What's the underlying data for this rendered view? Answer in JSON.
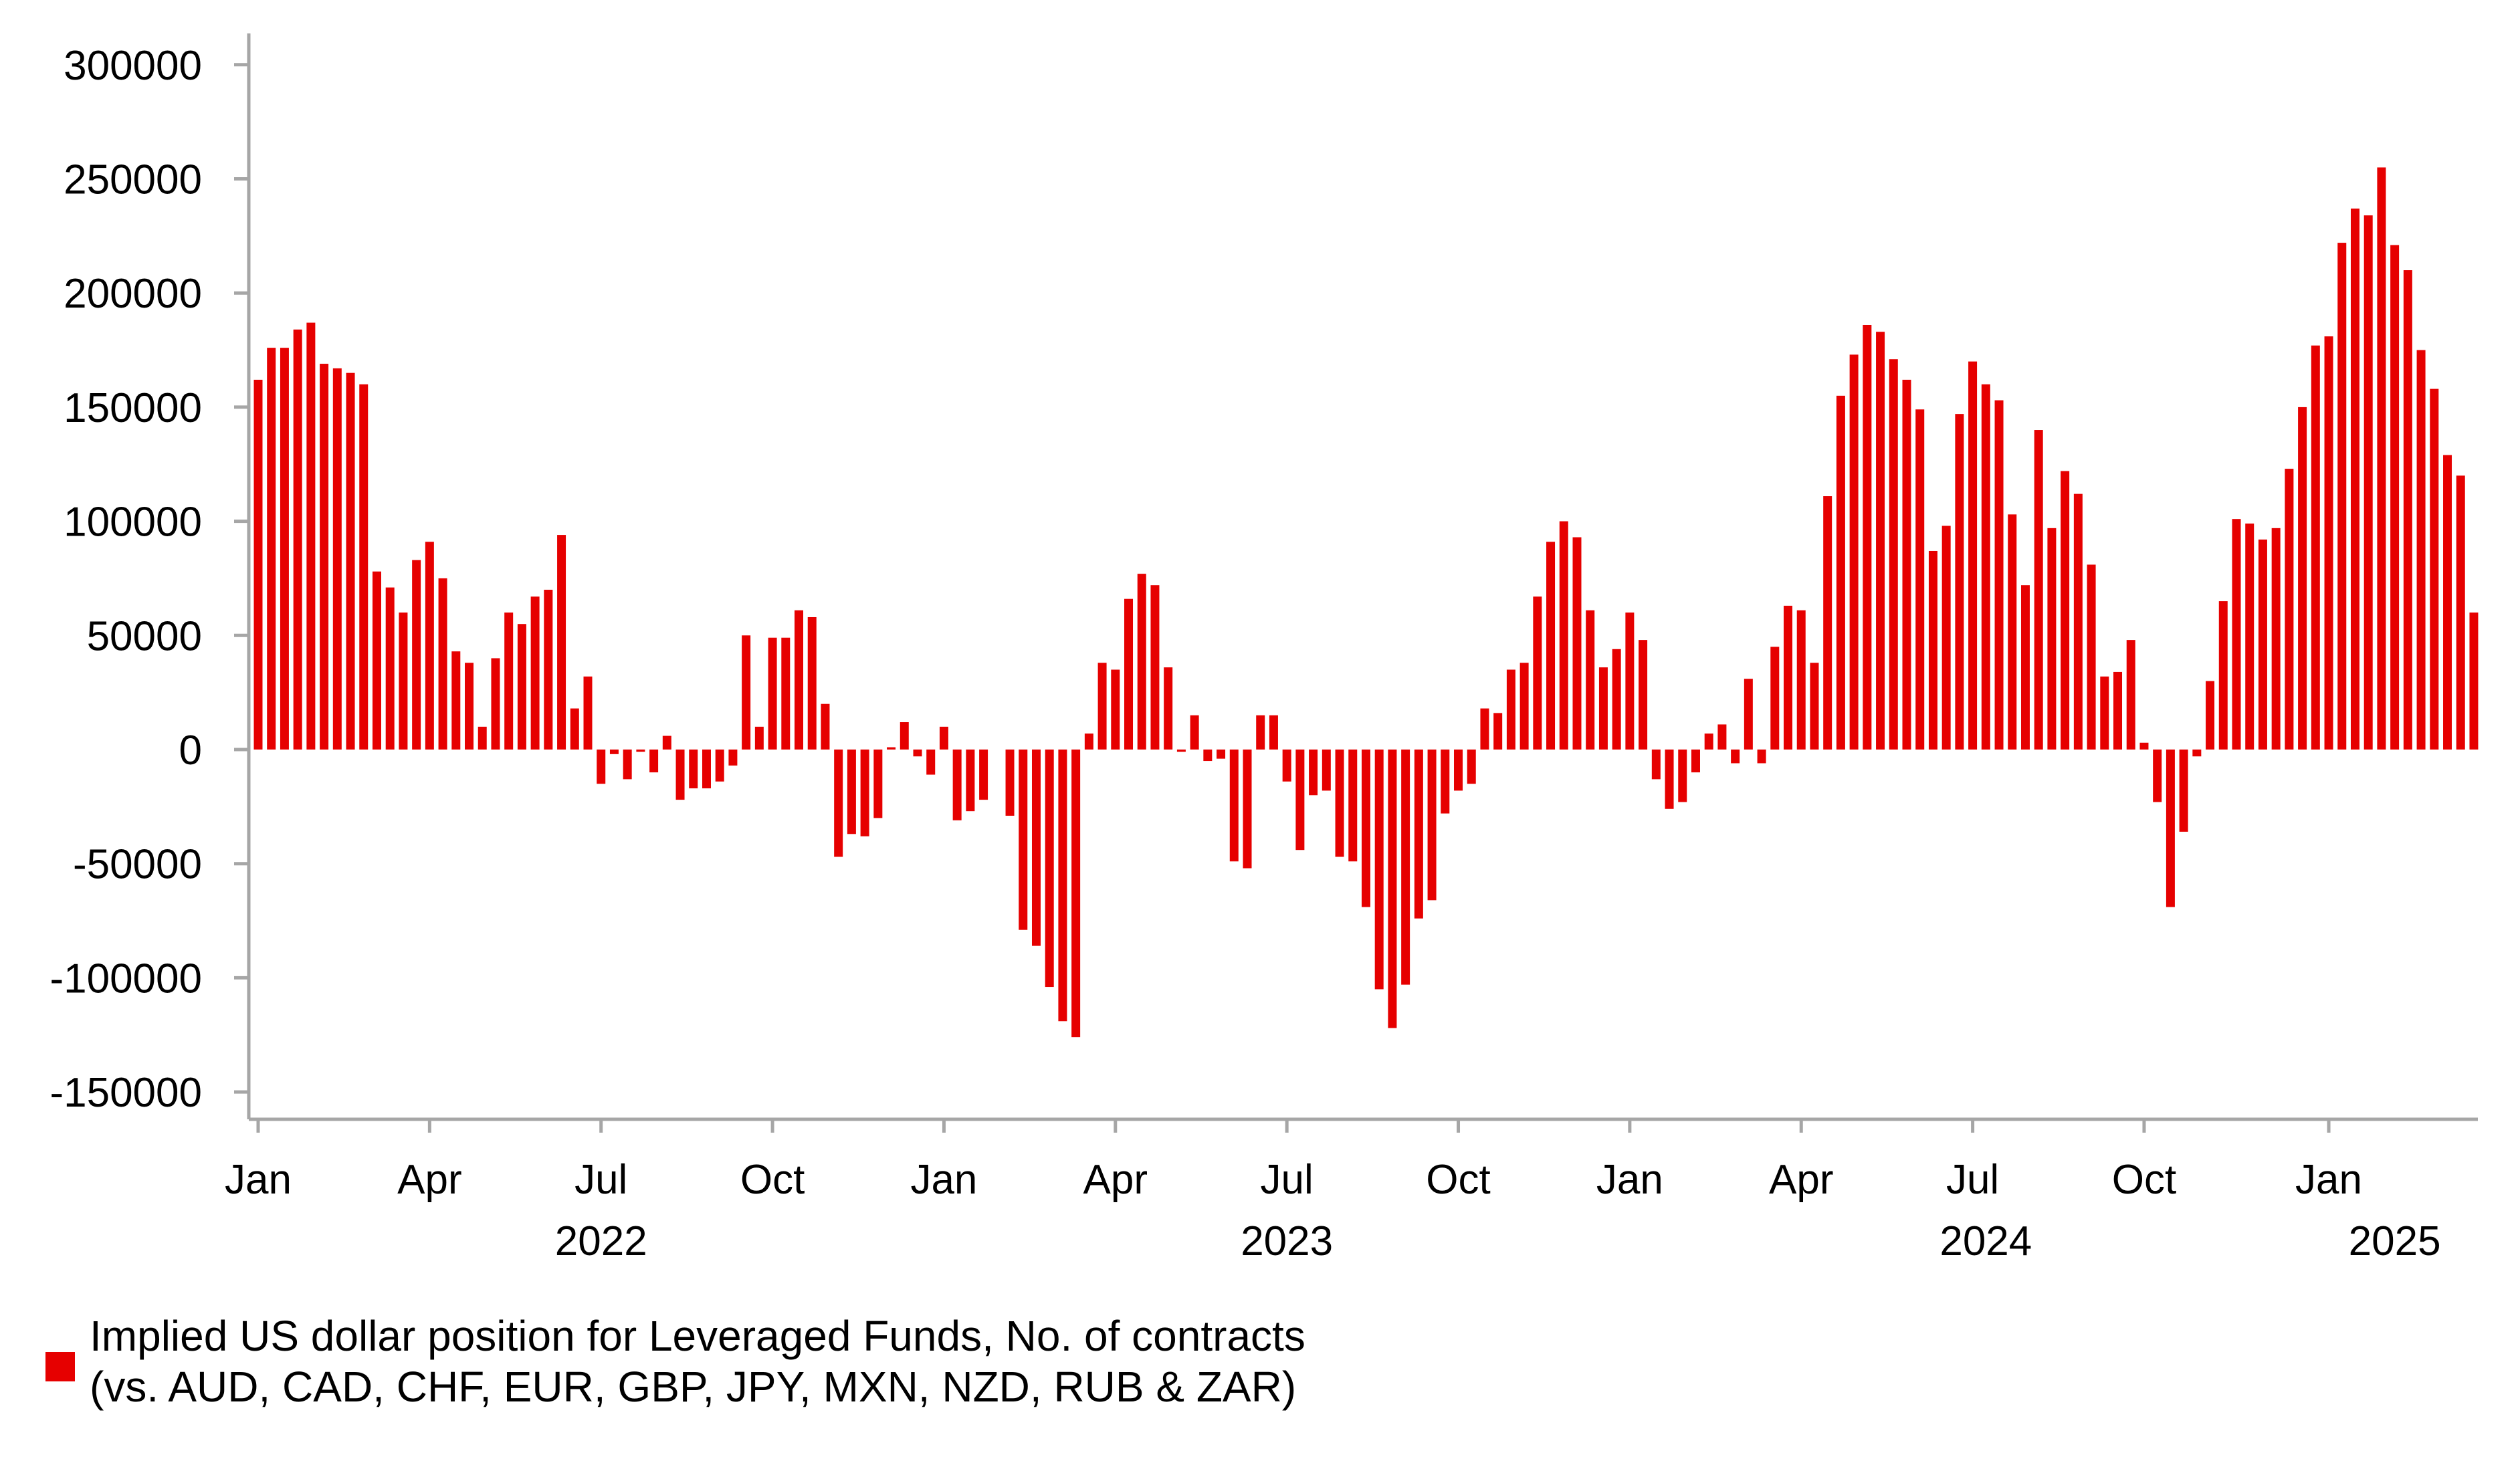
{
  "chart_data": {
    "type": "bar",
    "title": "",
    "xlabel": "",
    "ylabel": "",
    "ylim": [
      -150000,
      300000
    ],
    "yticks": [
      "300000",
      "250000",
      "200000",
      "150000",
      "100000",
      "50000",
      "0",
      "-50000",
      "-100000",
      "-150000"
    ],
    "ytick_values": [
      300000,
      250000,
      200000,
      150000,
      100000,
      50000,
      0,
      -50000,
      -100000,
      -150000
    ],
    "frequency": "weekly",
    "start": "2022-01 (first week)",
    "x_month_ticks": [
      {
        "label": "Jan",
        "week": 0
      },
      {
        "label": "Apr",
        "week": 13
      },
      {
        "label": "Jul",
        "week": 26
      },
      {
        "label": "Oct",
        "week": 39
      },
      {
        "label": "Jan",
        "week": 52
      },
      {
        "label": "Apr",
        "week": 65
      },
      {
        "label": "Jul",
        "week": 78
      },
      {
        "label": "Oct",
        "week": 91
      },
      {
        "label": "Jan",
        "week": 104
      },
      {
        "label": "Apr",
        "week": 117
      },
      {
        "label": "Jul",
        "week": 130
      },
      {
        "label": "Oct",
        "week": 143
      },
      {
        "label": "Jan",
        "week": 157
      }
    ],
    "x_year_labels": [
      {
        "label": "2022",
        "week": 26
      },
      {
        "label": "2023",
        "week": 78
      },
      {
        "label": "2024",
        "week": 131
      },
      {
        "label": "2025",
        "week": 162
      }
    ],
    "series": [
      {
        "name": "Implied US dollar position for Leveraged Funds, No. of contracts (vs. AUD, CAD, CHF, EUR, GBP, JPY, MXN, NZD, RUB & ZAR)",
        "color": "#e60000",
        "values": [
          162000,
          176000,
          176000,
          184000,
          187000,
          169000,
          167000,
          165000,
          160000,
          78000,
          71000,
          60000,
          83000,
          91000,
          75000,
          43000,
          38000,
          10000,
          40000,
          60000,
          55000,
          67000,
          70000,
          94000,
          18000,
          32000,
          -15000,
          -2000,
          -13000,
          -1000,
          -10000,
          6000,
          -22000,
          -17000,
          -17000,
          -14000,
          -7000,
          50000,
          10000,
          49000,
          49000,
          61000,
          58000,
          20000,
          -47000,
          -37000,
          -38000,
          -30000,
          1000,
          12000,
          -3000,
          -11000,
          10000,
          -31000,
          -27000,
          -22000,
          0,
          -29000,
          -79000,
          -86000,
          -104000,
          -119000,
          -126000,
          7000,
          38000,
          35000,
          66000,
          77000,
          72000,
          36000,
          -1000,
          15000,
          -5000,
          -4000,
          -49000,
          -52000,
          15000,
          15000,
          -14000,
          -44000,
          -20000,
          -18000,
          -47000,
          -49000,
          -69000,
          -105000,
          -122000,
          -103000,
          -74000,
          -66000,
          -28000,
          -18000,
          -15000,
          18000,
          16000,
          35000,
          38000,
          67000,
          91000,
          100000,
          93000,
          61000,
          36000,
          44000,
          60000,
          48000,
          -13000,
          -26000,
          -23000,
          -10000,
          7000,
          11000,
          -6000,
          31000,
          -6000,
          45000,
          63000,
          61000,
          38000,
          111000,
          155000,
          173000,
          186000,
          183000,
          171000,
          162000,
          149000,
          87000,
          98000,
          147000,
          170000,
          160000,
          153000,
          103000,
          72000,
          140000,
          97000,
          122000,
          112000,
          81000,
          32000,
          34000,
          48000,
          3000,
          -23000,
          -69000,
          -36000,
          -3000,
          30000,
          65000,
          101000,
          99000,
          92000,
          97000,
          123000,
          150000,
          177000,
          181000,
          222000,
          237000,
          234000,
          255000,
          221000,
          210000,
          175000,
          158000,
          129000,
          120000,
          60000
        ]
      }
    ],
    "legend": {
      "position": "bottom-left",
      "line1": "Implied US dollar position for Leveraged Funds, No. of contracts",
      "line2": "(vs. AUD, CAD, CHF, EUR, GBP, JPY, MXN, NZD, RUB & ZAR)"
    },
    "grid": false,
    "axis_color": "#a6a6a6"
  }
}
